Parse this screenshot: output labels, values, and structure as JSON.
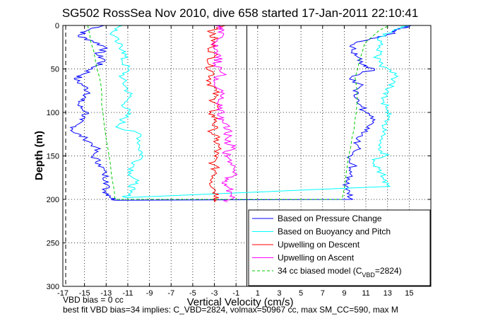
{
  "chart_data": {
    "type": "line",
    "title": "SG502 RossSea Nov 2010, dive 658 started 17-Jan-2011 22:10:41",
    "xlabel": "Vertical Velocity (cm/s)",
    "ylabel": "Depth (m)",
    "xlim": [
      -17,
      17
    ],
    "ylim": [
      300,
      0
    ],
    "xticks": [
      -17,
      -15,
      -13,
      -11,
      -9,
      -7,
      -5,
      -3,
      -1,
      1,
      3,
      5,
      7,
      9,
      11,
      13,
      15
    ],
    "yticks": [
      0,
      50,
      100,
      150,
      200,
      250,
      300
    ],
    "grid": true,
    "legend_position": "bottom-right",
    "series": [
      {
        "name": "Based on Pressure Change",
        "color": "#0000ff",
        "style": "solid",
        "descent": [
          [
            -13.2,
            0
          ],
          [
            -14.8,
            6
          ],
          [
            -15.6,
            12
          ],
          [
            -14.2,
            18
          ],
          [
            -12.9,
            26
          ],
          [
            -13.9,
            33
          ],
          [
            -13.1,
            40
          ],
          [
            -14.0,
            47
          ],
          [
            -14.9,
            55
          ],
          [
            -15.9,
            62
          ],
          [
            -15.0,
            70
          ],
          [
            -14.5,
            78
          ],
          [
            -15.3,
            85
          ],
          [
            -15.6,
            92
          ],
          [
            -14.7,
            100
          ],
          [
            -15.4,
            108
          ],
          [
            -15.8,
            115
          ],
          [
            -16.1,
            122
          ],
          [
            -14.9,
            130
          ],
          [
            -13.9,
            140
          ],
          [
            -14.2,
            150
          ],
          [
            -13.5,
            160
          ],
          [
            -13.2,
            170
          ],
          [
            -12.8,
            180
          ],
          [
            -13.1,
            190
          ],
          [
            -12.6,
            196
          ],
          [
            -12.2,
            201
          ]
        ],
        "ascent": [
          [
            9.8,
            200
          ],
          [
            9.5,
            190
          ],
          [
            9.2,
            180
          ],
          [
            9.5,
            170
          ],
          [
            9.9,
            160
          ],
          [
            9.6,
            150
          ],
          [
            10.3,
            140
          ],
          [
            10.1,
            130
          ],
          [
            10.9,
            120
          ],
          [
            11.6,
            110
          ],
          [
            11.0,
            100
          ],
          [
            10.3,
            90
          ],
          [
            9.9,
            80
          ],
          [
            10.5,
            70
          ],
          [
            9.6,
            60
          ],
          [
            11.8,
            50
          ],
          [
            10.7,
            45
          ],
          [
            10.1,
            35
          ],
          [
            9.7,
            28
          ],
          [
            10.0,
            20
          ],
          [
            12.2,
            14
          ],
          [
            13.6,
            8
          ],
          [
            14.1,
            4
          ],
          [
            15.2,
            0
          ]
        ]
      },
      {
        "name": "Based on Buoyancy and Pitch",
        "color": "#00ffff",
        "style": "solid",
        "descent": [
          [
            -11.5,
            0
          ],
          [
            -12.5,
            8
          ],
          [
            -12.0,
            20
          ],
          [
            -11.2,
            30
          ],
          [
            -11.5,
            40
          ],
          [
            -11.0,
            50
          ],
          [
            -11.6,
            60
          ],
          [
            -11.2,
            70
          ],
          [
            -10.8,
            80
          ],
          [
            -11.3,
            90
          ],
          [
            -11.0,
            100
          ],
          [
            -11.5,
            110
          ],
          [
            -11.8,
            118
          ],
          [
            -9.8,
            125
          ],
          [
            -9.9,
            140
          ],
          [
            -9.6,
            150
          ],
          [
            -10.4,
            160
          ],
          [
            -10.7,
            170
          ],
          [
            -10.3,
            180
          ],
          [
            -10.8,
            190
          ],
          [
            -11.2,
            198
          ]
        ],
        "ascent": [
          [
            13.2,
            185
          ],
          [
            12.6,
            175
          ],
          [
            12.2,
            165
          ],
          [
            11.8,
            155
          ],
          [
            12.8,
            150
          ],
          [
            12.4,
            140
          ],
          [
            12.8,
            125
          ],
          [
            12.5,
            115
          ],
          [
            13.2,
            105
          ],
          [
            12.9,
            95
          ],
          [
            12.6,
            85
          ],
          [
            13.0,
            75
          ],
          [
            13.7,
            65
          ],
          [
            13.8,
            55
          ],
          [
            12.4,
            45
          ],
          [
            12.0,
            35
          ],
          [
            12.3,
            25
          ],
          [
            12.1,
            15
          ],
          [
            13.6,
            5
          ],
          [
            15.0,
            0
          ]
        ]
      },
      {
        "name": "Upwelling on Descent",
        "color": "#ff0000",
        "style": "solid",
        "points": [
          [
            -2.0,
            0
          ],
          [
            -3.4,
            8
          ],
          [
            -3.0,
            16
          ],
          [
            -3.3,
            25
          ],
          [
            -3.0,
            35
          ],
          [
            -3.5,
            45
          ],
          [
            -3.1,
            55
          ],
          [
            -3.4,
            65
          ],
          [
            -2.9,
            75
          ],
          [
            -3.1,
            85
          ],
          [
            -2.7,
            92
          ],
          [
            -3.3,
            100
          ],
          [
            -2.8,
            110
          ],
          [
            -3.2,
            120
          ],
          [
            -2.9,
            130
          ],
          [
            -2.6,
            140
          ],
          [
            -3.0,
            150
          ],
          [
            -3.1,
            160
          ],
          [
            -2.8,
            170
          ],
          [
            -3.2,
            180
          ],
          [
            -2.9,
            190
          ],
          [
            -2.6,
            198
          ],
          [
            -3.0,
            203
          ]
        ]
      },
      {
        "name": "Upwelling on Ascent",
        "color": "#ff00ff",
        "style": "solid",
        "points": [
          [
            -1.8,
            203
          ],
          [
            -1.4,
            195
          ],
          [
            -1.8,
            185
          ],
          [
            -2.0,
            178
          ],
          [
            -1.1,
            170
          ],
          [
            -1.5,
            160
          ],
          [
            -2.0,
            150
          ],
          [
            -1.4,
            140
          ],
          [
            -1.9,
            130
          ],
          [
            -1.6,
            120
          ],
          [
            -2.2,
            112
          ],
          [
            -2.4,
            105
          ],
          [
            -2.3,
            95
          ],
          [
            -2.6,
            85
          ],
          [
            -2.2,
            75
          ],
          [
            -3.0,
            65
          ],
          [
            -2.2,
            55
          ],
          [
            -2.9,
            45
          ],
          [
            -2.4,
            35
          ],
          [
            -3.1,
            25
          ],
          [
            -2.6,
            15
          ],
          [
            -2.2,
            6
          ],
          [
            -3.0,
            0
          ]
        ]
      },
      {
        "name": "34 cc biased model (C",
        "name_sub": "VBD",
        "name_end": "=2824)",
        "color": "#00cc00",
        "style": "dashed",
        "descent": [
          [
            -14.7,
            0
          ],
          [
            -14.4,
            20
          ],
          [
            -14.0,
            40
          ],
          [
            -13.6,
            60
          ],
          [
            -13.4,
            80
          ],
          [
            -13.3,
            100
          ],
          [
            -13.0,
            130
          ],
          [
            -12.6,
            160
          ],
          [
            -12.4,
            180
          ],
          [
            -12.2,
            200
          ]
        ],
        "ascent": [
          [
            8.8,
            200
          ],
          [
            9.1,
            180
          ],
          [
            9.3,
            160
          ],
          [
            9.6,
            140
          ],
          [
            9.9,
            120
          ],
          [
            10.1,
            100
          ],
          [
            10.2,
            80
          ],
          [
            10.0,
            60
          ],
          [
            10.4,
            40
          ],
          [
            10.9,
            20
          ],
          [
            12.2,
            6
          ],
          [
            13.2,
            0
          ]
        ]
      }
    ]
  },
  "footer": {
    "line1": "VBD bias = 0 cc",
    "line2": "best fit VBD bias=34 implies: C_VBD=2824, volmax=50967 cc, max SM_CC=590, max M"
  }
}
